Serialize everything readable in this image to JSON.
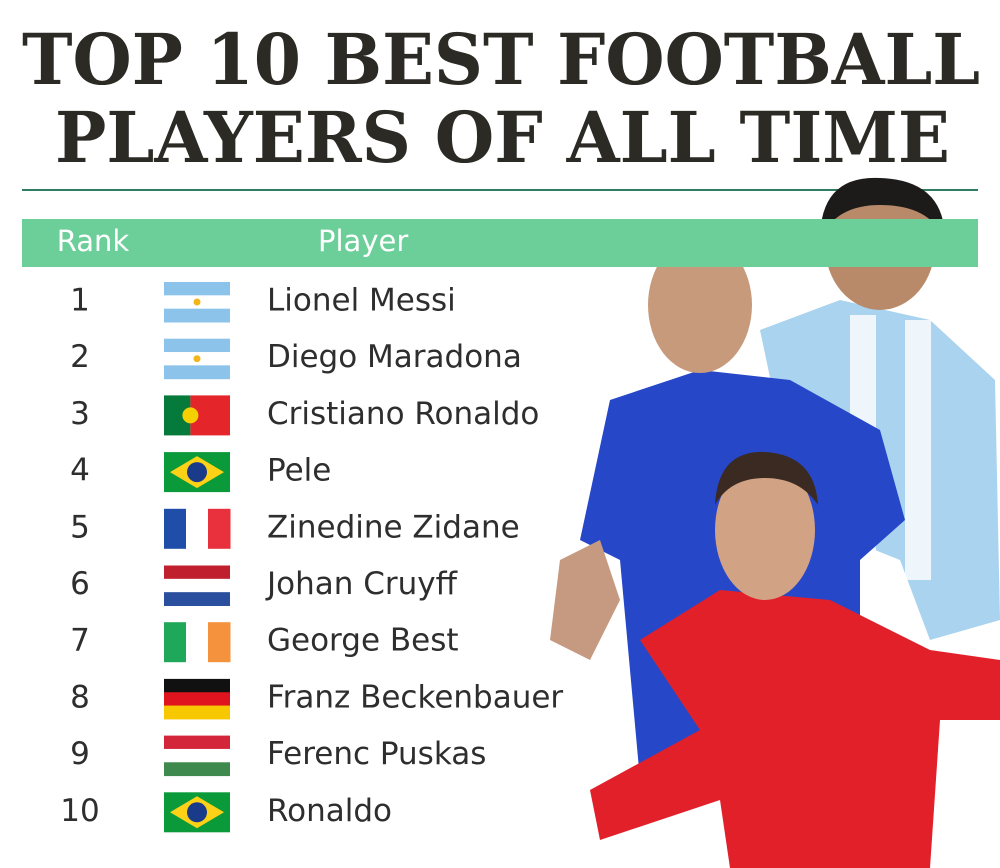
{
  "header": {
    "title_lines": [
      "TOP 10 BEST FOOTBALL",
      "PLAYERS OF ALL TIME"
    ]
  },
  "table": {
    "columns": [
      "Rank",
      "Player"
    ],
    "rows": [
      [
        1,
        "Lionel Messi"
      ],
      [
        2,
        "Diego Maradona"
      ],
      [
        3,
        "Cristiano Ronaldo"
      ],
      [
        4,
        "Pele"
      ],
      [
        5,
        "Zinedine Zidane"
      ],
      [
        6,
        "Johan Cruyff"
      ],
      [
        7,
        "George Best"
      ],
      [
        8,
        "Franz Beckenbauer"
      ],
      [
        9,
        "Ferenc Puskas"
      ],
      [
        10,
        "Ronaldo"
      ]
    ]
  }
}
